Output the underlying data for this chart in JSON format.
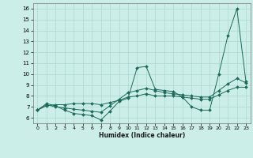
{
  "xlabel": "Humidex (Indice chaleur)",
  "ylabel": "",
  "background_color": "#cceee8",
  "grid_color": "#aad8d0",
  "line_color": "#1a6b5a",
  "x_data": [
    0,
    1,
    2,
    3,
    4,
    5,
    6,
    7,
    8,
    9,
    10,
    11,
    12,
    13,
    14,
    15,
    16,
    17,
    18,
    19,
    20,
    21,
    22,
    23
  ],
  "line1": [
    6.7,
    7.3,
    7.1,
    6.7,
    6.4,
    6.3,
    6.2,
    5.8,
    6.6,
    7.5,
    7.8,
    10.6,
    10.7,
    8.6,
    8.5,
    8.4,
    7.9,
    7.0,
    6.7,
    6.7,
    10.0,
    13.5,
    16.0,
    9.3
  ],
  "line2": [
    6.7,
    7.2,
    7.0,
    6.9,
    6.8,
    6.7,
    6.6,
    6.5,
    7.1,
    7.7,
    8.3,
    8.5,
    8.7,
    8.5,
    8.3,
    8.2,
    8.1,
    8.0,
    7.9,
    7.9,
    8.5,
    9.1,
    9.6,
    9.2
  ],
  "line3": [
    6.7,
    7.1,
    7.2,
    7.2,
    7.3,
    7.3,
    7.3,
    7.2,
    7.4,
    7.6,
    7.9,
    8.0,
    8.2,
    8.0,
    8.0,
    8.0,
    7.9,
    7.8,
    7.7,
    7.7,
    8.1,
    8.5,
    8.8,
    8.8
  ],
  "ylim": [
    5.5,
    16.5
  ],
  "yticks": [
    6,
    7,
    8,
    9,
    10,
    11,
    12,
    13,
    14,
    15,
    16
  ],
  "xlim": [
    -0.5,
    23.5
  ],
  "xticks": [
    0,
    1,
    2,
    3,
    4,
    5,
    6,
    7,
    8,
    9,
    10,
    11,
    12,
    13,
    14,
    15,
    16,
    17,
    18,
    19,
    20,
    21,
    22,
    23
  ],
  "xlabel_fontsize": 5.5,
  "ytick_fontsize": 5.0,
  "xtick_fontsize": 4.5
}
